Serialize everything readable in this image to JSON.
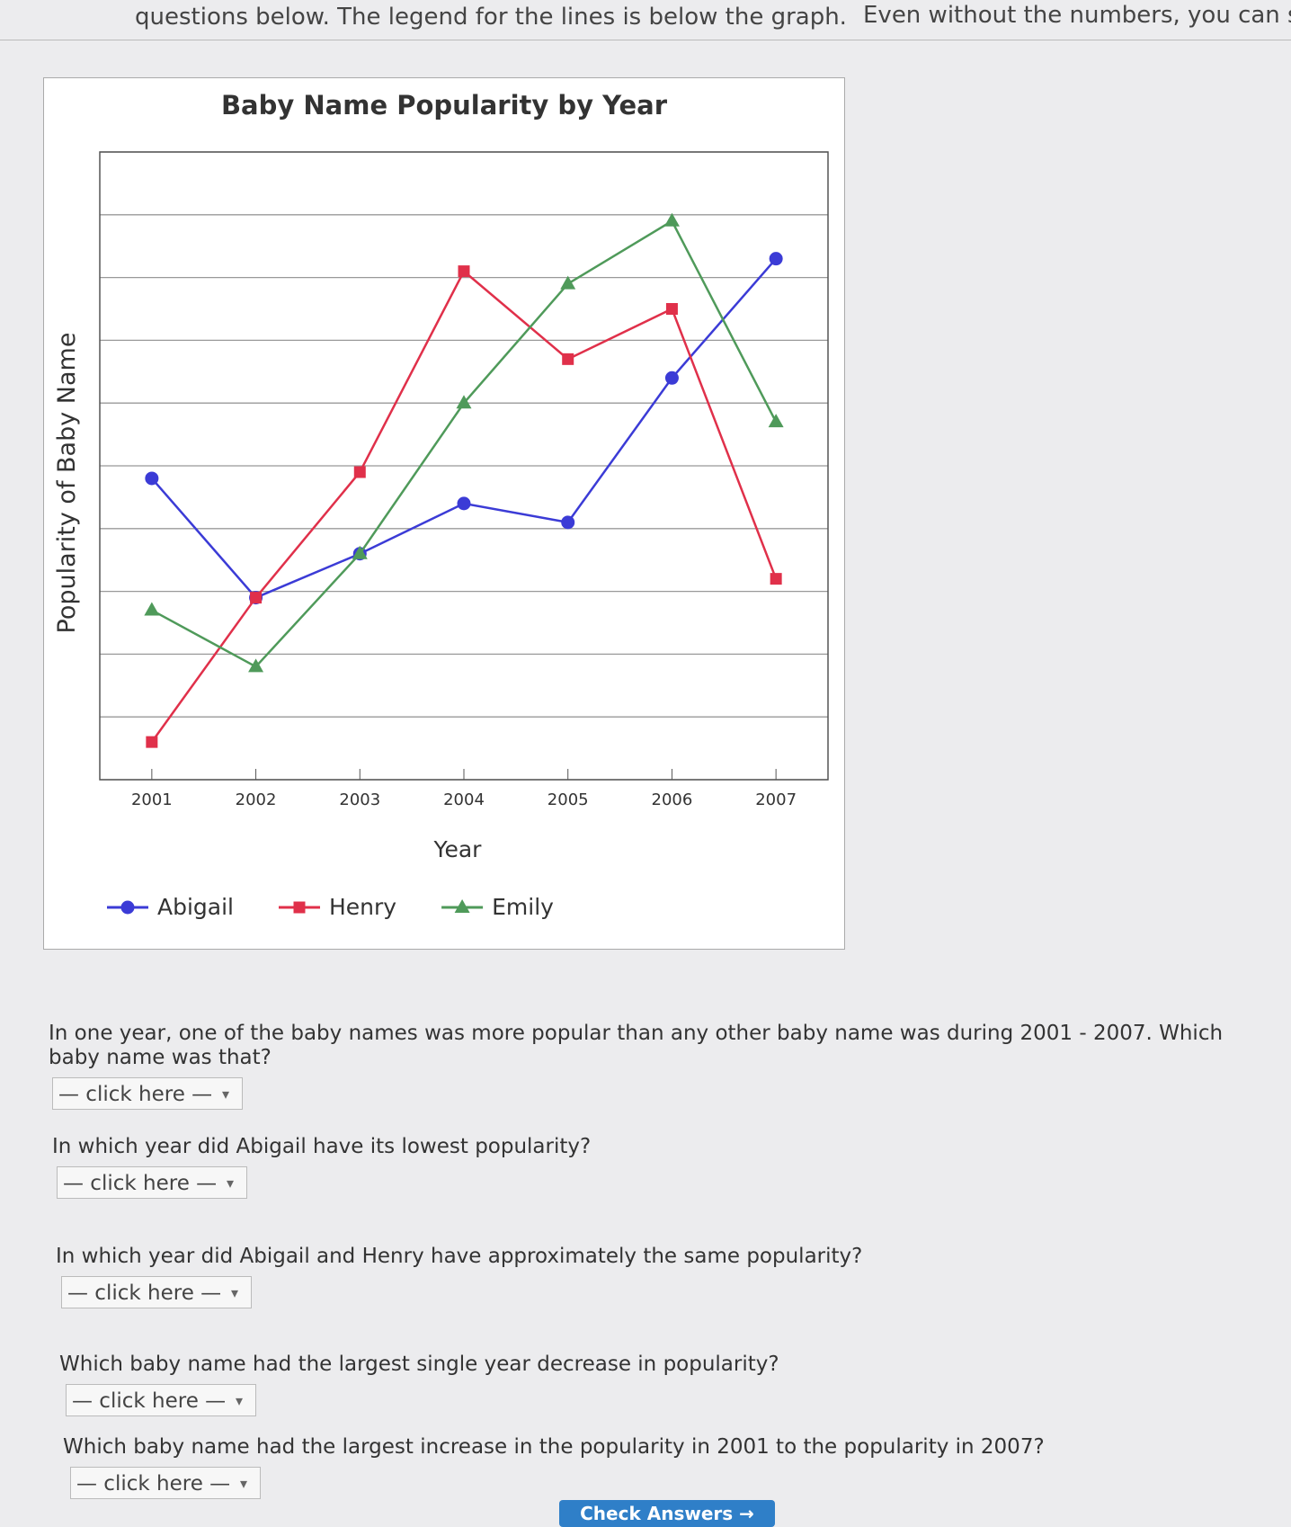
{
  "intro": {
    "line1": "questions below. The legend for the lines is below the graph.",
    "line2": "Even without the numbers, you can sti"
  },
  "chart_data": {
    "type": "line",
    "title": "Baby Name Popularity by Year",
    "x_label": "Year",
    "y_label": "Popularity of Baby Name",
    "categories": [
      "2001",
      "2002",
      "2003",
      "2004",
      "2005",
      "2006",
      "2007"
    ],
    "ylim": [
      0,
      10
    ],
    "yticks": [
      0,
      1,
      2,
      3,
      4,
      5,
      6,
      7,
      8,
      9,
      10
    ],
    "grid": true,
    "legend": "bottom",
    "series": [
      {
        "name": "Abigail",
        "color": "#3b3bd6",
        "marker": "circle",
        "values": [
          4.8,
          2.9,
          3.6,
          4.4,
          4.1,
          6.4,
          8.3
        ]
      },
      {
        "name": "Henry",
        "color": "#e0304a",
        "marker": "square",
        "values": [
          0.6,
          2.9,
          4.9,
          8.1,
          6.7,
          7.5,
          3.2
        ]
      },
      {
        "name": "Emily",
        "color": "#4f9a5a",
        "marker": "triangle",
        "values": [
          2.7,
          1.8,
          3.6,
          6.0,
          7.9,
          8.9,
          5.7
        ]
      }
    ]
  },
  "questions": [
    "In one year, one of the baby names was more popular than any other baby name was during 2001 - 2007. Which baby name was that?",
    "In which year did Abigail have its lowest popularity?",
    "In which year did Abigail and Henry have approximately the same popularity?",
    "Which baby name had the largest single year decrease in popularity?",
    "Which baby name had the largest increase in the popularity in 2001 to the popularity in 2007?"
  ],
  "dropdown_placeholder": "— click here —",
  "button": "Check Answers →"
}
